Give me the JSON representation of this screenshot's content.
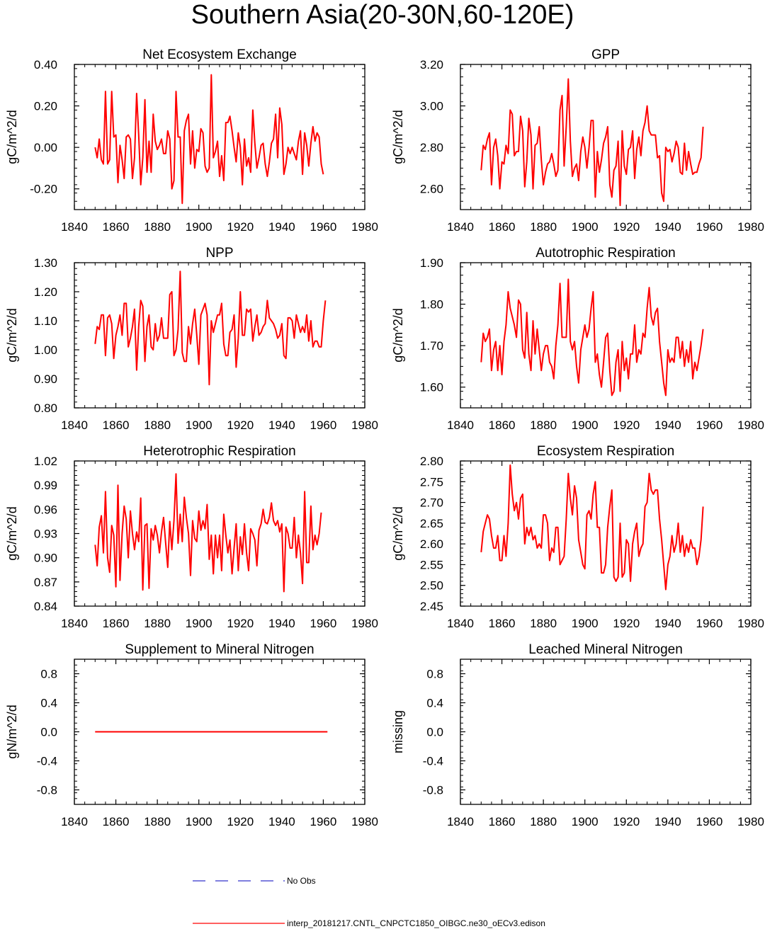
{
  "figure": {
    "title": "Southern Asia(20-30N,60-120E)"
  },
  "colors": {
    "series": "#ff0000",
    "obs": "#3333cc",
    "axis": "#000000"
  },
  "legend": {
    "obs_label": "No Obs",
    "model_label": "interp_20181217.CNTL_CNPCTC1850_OIBGC.ne30_oECv3.edison"
  },
  "chart_data": [
    {
      "type": "line",
      "title": "Net Ecosystem Exchange",
      "ylabel": "gC/m^2/d",
      "xlim": [
        1840,
        1980
      ],
      "x_ticks": [
        "1840",
        "1860",
        "1880",
        "1900",
        "1920",
        "1940",
        "1960",
        "1980"
      ],
      "ylim": [
        -0.3,
        0.4
      ],
      "y_ticks": [
        {
          "v": 0.4,
          "l": "0.40"
        },
        {
          "v": 0.2,
          "l": "0.20"
        },
        {
          "v": 0.0,
          "l": "0.00"
        },
        {
          "v": -0.2,
          "l": "-0.20"
        }
      ],
      "x_start": 1850,
      "series": [
        {
          "name": "interp_20181217.CNTL_CNPCTC1850_OIBGC.ne30_oECv3.edison",
          "values": [
            0.0,
            -0.05,
            0.04,
            -0.06,
            -0.08,
            0.27,
            -0.08,
            -0.06,
            0.27,
            0.05,
            0.06,
            -0.17,
            0.01,
            -0.06,
            -0.15,
            0.05,
            0.06,
            0.04,
            -0.15,
            -0.05,
            0.26,
            0.06,
            -0.18,
            -0.05,
            0.23,
            -0.12,
            0.03,
            -0.12,
            0.16,
            0.03,
            -0.01,
            0.01,
            0.04,
            -0.03,
            -0.03,
            0.08,
            0.04,
            -0.2,
            -0.16,
            0.27,
            0.05,
            0.05,
            -0.27,
            0.08,
            0.13,
            0.16,
            -0.08,
            0.08,
            -0.1,
            -0.01,
            -0.02,
            0.09,
            0.07,
            -0.09,
            -0.12,
            -0.1,
            0.35,
            -0.05,
            -0.02,
            0.03,
            -0.14,
            -0.04,
            -0.16,
            0.12,
            0.12,
            0.15,
            0.08,
            0.0,
            -0.07,
            0.07,
            0.0,
            -0.18,
            0.04,
            -0.09,
            -0.05,
            -0.12,
            0.18,
            0.02,
            -0.1,
            -0.05,
            0.01,
            0.02,
            -0.08,
            -0.14,
            -0.07,
            0.02,
            0.04,
            0.16,
            -0.05,
            0.19,
            0.11,
            -0.13,
            -0.08,
            0.0,
            -0.03,
            0.0,
            -0.03,
            -0.06,
            0.03,
            0.08,
            -0.13,
            0.07,
            0.01,
            -0.09,
            0.02,
            0.1,
            0.03,
            0.07,
            0.05,
            -0.08,
            -0.13
          ]
        }
      ]
    },
    {
      "type": "line",
      "title": "GPP",
      "ylabel": "gC/m^2/d",
      "xlim": [
        1840,
        1980
      ],
      "x_ticks": [
        "1840",
        "1860",
        "1880",
        "1900",
        "1920",
        "1940",
        "1960",
        "1980"
      ],
      "ylim": [
        2.5,
        3.2
      ],
      "y_ticks": [
        {
          "v": 3.2,
          "l": "3.20"
        },
        {
          "v": 3.0,
          "l": "3.00"
        },
        {
          "v": 2.8,
          "l": "2.80"
        },
        {
          "v": 2.6,
          "l": "2.60"
        }
      ],
      "x_start": 1850,
      "series": [
        {
          "name": "interp_20181217.CNTL_CNPCTC1850_OIBGC.ne30_oECv3.edison",
          "values": [
            2.69,
            2.81,
            2.79,
            2.84,
            2.87,
            2.62,
            2.8,
            2.84,
            2.76,
            2.6,
            2.73,
            2.72,
            2.81,
            2.77,
            2.98,
            2.96,
            2.76,
            2.78,
            2.78,
            2.95,
            2.88,
            2.61,
            2.73,
            2.94,
            2.86,
            2.6,
            2.81,
            2.82,
            2.9,
            2.74,
            2.62,
            2.68,
            2.72,
            2.73,
            2.77,
            2.72,
            2.66,
            2.69,
            2.98,
            3.05,
            2.71,
            2.9,
            3.13,
            2.83,
            2.66,
            2.7,
            2.72,
            2.64,
            2.78,
            2.85,
            2.8,
            2.7,
            2.8,
            2.93,
            2.93,
            2.56,
            2.78,
            2.68,
            2.74,
            2.82,
            2.85,
            2.9,
            2.62,
            2.56,
            2.69,
            2.71,
            2.83,
            2.52,
            2.88,
            2.71,
            2.67,
            2.79,
            2.8,
            2.88,
            2.65,
            2.79,
            2.85,
            2.76,
            2.88,
            2.92,
            3.0,
            2.88,
            2.86,
            2.86,
            2.86,
            2.75,
            2.76,
            2.58,
            2.54,
            2.8,
            2.78,
            2.79,
            2.73,
            2.77,
            2.83,
            2.8,
            2.68,
            2.67,
            2.82,
            2.69,
            2.78,
            2.72,
            2.67,
            2.68,
            2.68,
            2.72,
            2.75,
            2.9
          ]
        }
      ]
    },
    {
      "type": "line",
      "title": "NPP",
      "ylabel": "gC/m^2/d",
      "xlim": [
        1840,
        1980
      ],
      "x_ticks": [
        "1840",
        "1860",
        "1880",
        "1900",
        "1920",
        "1940",
        "1960",
        "1980"
      ],
      "ylim": [
        0.8,
        1.3
      ],
      "y_ticks": [
        {
          "v": 1.3,
          "l": "1.30"
        },
        {
          "v": 1.2,
          "l": "1.20"
        },
        {
          "v": 1.1,
          "l": "1.10"
        },
        {
          "v": 1.0,
          "l": "1.00"
        },
        {
          "v": 0.9,
          "l": "0.90"
        },
        {
          "v": 0.8,
          "l": "0.80"
        }
      ],
      "x_start": 1850,
      "series": [
        {
          "name": "interp_20181217.CNTL_CNPCTC1850_OIBGC.ne30_oECv3.edison",
          "values": [
            1.02,
            1.08,
            1.07,
            1.12,
            1.12,
            0.98,
            1.11,
            1.12,
            1.09,
            0.97,
            1.05,
            1.08,
            1.12,
            1.05,
            1.16,
            1.16,
            1.01,
            1.04,
            1.08,
            1.14,
            0.93,
            1.08,
            1.17,
            1.15,
            0.96,
            1.08,
            1.12,
            1.01,
            1.0,
            1.09,
            1.03,
            1.05,
            1.11,
            1.04,
            1.04,
            1.04,
            1.19,
            1.2,
            0.98,
            1.0,
            1.07,
            1.27,
            0.99,
            0.96,
            0.96,
            1.08,
            1.02,
            1.09,
            1.14,
            1.05,
            0.95,
            1.12,
            1.14,
            1.16,
            1.12,
            0.88,
            1.1,
            1.06,
            1.09,
            1.12,
            1.12,
            1.16,
            1.02,
            0.98,
            0.98,
            1.06,
            1.07,
            1.12,
            0.94,
            1.04,
            1.2,
            1.05,
            1.05,
            1.14,
            1.13,
            1.14,
            1.03,
            1.08,
            1.12,
            1.05,
            1.06,
            1.08,
            1.09,
            1.17,
            1.11,
            1.1,
            1.09,
            1.07,
            1.04,
            1.05,
            1.09,
            0.98,
            0.97,
            1.11,
            1.11,
            1.1,
            1.04,
            1.12,
            1.09,
            1.06,
            1.08,
            1.06,
            1.12,
            1.03,
            1.1,
            1.01,
            1.03,
            1.03,
            1.01,
            1.01,
            1.1,
            1.17
          ]
        }
      ]
    },
    {
      "type": "line",
      "title": "Autotrophic Respiration",
      "ylabel": "gC/m^2/d",
      "xlim": [
        1840,
        1980
      ],
      "x_ticks": [
        "1840",
        "1860",
        "1880",
        "1900",
        "1920",
        "1940",
        "1960",
        "1980"
      ],
      "ylim": [
        1.55,
        1.9
      ],
      "y_ticks": [
        {
          "v": 1.9,
          "l": "1.90"
        },
        {
          "v": 1.8,
          "l": "1.80"
        },
        {
          "v": 1.7,
          "l": "1.70"
        },
        {
          "v": 1.6,
          "l": "1.60"
        }
      ],
      "x_start": 1850,
      "series": [
        {
          "name": "interp_20181217.CNTL_CNPCTC1850_OIBGC.ne30_oECv3.edison",
          "values": [
            1.66,
            1.73,
            1.71,
            1.72,
            1.74,
            1.64,
            1.69,
            1.71,
            1.64,
            1.7,
            1.63,
            1.71,
            1.75,
            1.83,
            1.79,
            1.77,
            1.75,
            1.72,
            1.81,
            1.8,
            1.69,
            1.67,
            1.78,
            1.68,
            1.64,
            1.76,
            1.68,
            1.74,
            1.69,
            1.64,
            1.68,
            1.7,
            1.7,
            1.66,
            1.65,
            1.62,
            1.7,
            1.75,
            1.85,
            1.72,
            1.72,
            1.72,
            1.86,
            1.71,
            1.69,
            1.71,
            1.65,
            1.61,
            1.69,
            1.72,
            1.75,
            1.72,
            1.74,
            1.79,
            1.83,
            1.66,
            1.68,
            1.63,
            1.6,
            1.66,
            1.72,
            1.73,
            1.64,
            1.58,
            1.59,
            1.66,
            1.69,
            1.59,
            1.71,
            1.64,
            1.67,
            1.62,
            1.68,
            1.68,
            1.75,
            1.66,
            1.69,
            1.68,
            1.73,
            1.72,
            1.79,
            1.84,
            1.77,
            1.75,
            1.78,
            1.79,
            1.71,
            1.66,
            1.61,
            1.58,
            1.69,
            1.66,
            1.67,
            1.66,
            1.72,
            1.72,
            1.67,
            1.71,
            1.65,
            1.69,
            1.66,
            1.71,
            1.62,
            1.66,
            1.64,
            1.67,
            1.7,
            1.74
          ]
        }
      ]
    },
    {
      "type": "line",
      "title": "Heterotrophic Respiration",
      "ylabel": "gC/m^2/d",
      "xlim": [
        1840,
        1980
      ],
      "x_ticks": [
        "1840",
        "1860",
        "1880",
        "1900",
        "1920",
        "1940",
        "1960",
        "1980"
      ],
      "ylim": [
        0.84,
        1.02
      ],
      "y_ticks": [
        {
          "v": 1.02,
          "l": "1.02"
        },
        {
          "v": 0.99,
          "l": "0.99"
        },
        {
          "v": 0.96,
          "l": "0.96"
        },
        {
          "v": 0.93,
          "l": "0.93"
        },
        {
          "v": 0.9,
          "l": "0.90"
        },
        {
          "v": 0.87,
          "l": "0.87"
        },
        {
          "v": 0.84,
          "l": "0.84"
        }
      ],
      "x_start": 1850,
      "series": [
        {
          "name": "interp_20181217.CNTL_CNPCTC1850_OIBGC.ne30_oECv3.edison",
          "values": [
            0.916,
            0.89,
            0.938,
            0.952,
            0.906,
            0.982,
            0.9,
            0.882,
            0.94,
            0.928,
            0.864,
            0.99,
            0.872,
            0.93,
            0.964,
            0.948,
            0.9,
            0.958,
            0.93,
            0.91,
            0.932,
            0.92,
            0.974,
            0.86,
            0.94,
            0.942,
            0.862,
            0.936,
            0.922,
            0.94,
            0.928,
            0.906,
            0.932,
            0.95,
            0.918,
            0.888,
            0.945,
            0.91,
            0.946,
            1.004,
            0.918,
            0.954,
            0.92,
            0.975,
            0.95,
            0.93,
            0.878,
            0.946,
            0.924,
            0.92,
            0.958,
            0.934,
            0.946,
            0.936,
            0.966,
            0.898,
            0.928,
            0.88,
            0.928,
            0.9,
            0.928,
            0.884,
            0.954,
            0.928,
            0.906,
            0.922,
            0.88,
            0.912,
            0.942,
            0.884,
            0.926,
            0.904,
            0.942,
            0.906,
            0.884,
            0.936,
            0.93,
            0.922,
            0.89,
            0.934,
            0.942,
            0.96,
            0.944,
            0.942,
            0.95,
            0.968,
            0.946,
            0.94,
            0.946,
            0.932,
            0.942,
            0.858,
            0.938,
            0.93,
            0.912,
            0.912,
            0.95,
            0.9,
            0.928,
            0.906,
            0.868,
            0.982,
            0.894,
            0.894,
            0.964,
            0.91,
            0.928,
            0.916,
            0.93,
            0.956
          ]
        }
      ]
    },
    {
      "type": "line",
      "title": "Ecosystem Respiration",
      "ylabel": "gC/m^2/d",
      "xlim": [
        1840,
        1980
      ],
      "x_ticks": [
        "1840",
        "1860",
        "1880",
        "1900",
        "1920",
        "1940",
        "1960",
        "1980"
      ],
      "ylim": [
        2.45,
        2.8
      ],
      "y_ticks": [
        {
          "v": 2.8,
          "l": "2.80"
        },
        {
          "v": 2.75,
          "l": "2.75"
        },
        {
          "v": 2.7,
          "l": "2.70"
        },
        {
          "v": 2.65,
          "l": "2.65"
        },
        {
          "v": 2.6,
          "l": "2.60"
        },
        {
          "v": 2.55,
          "l": "2.55"
        },
        {
          "v": 2.5,
          "l": "2.50"
        },
        {
          "v": 2.45,
          "l": "2.45"
        }
      ],
      "x_start": 1850,
      "series": [
        {
          "name": "interp_20181217.CNTL_CNPCTC1850_OIBGC.ne30_oECv3.edison",
          "values": [
            2.58,
            2.63,
            2.65,
            2.67,
            2.66,
            2.62,
            2.59,
            2.59,
            2.62,
            2.56,
            2.56,
            2.62,
            2.57,
            2.65,
            2.79,
            2.72,
            2.68,
            2.7,
            2.66,
            2.71,
            2.72,
            2.6,
            2.64,
            2.62,
            2.64,
            2.61,
            2.62,
            2.59,
            2.6,
            2.59,
            2.67,
            2.67,
            2.65,
            2.56,
            2.59,
            2.58,
            2.64,
            2.64,
            2.55,
            2.56,
            2.57,
            2.66,
            2.77,
            2.71,
            2.67,
            2.74,
            2.71,
            2.61,
            2.58,
            2.55,
            2.54,
            2.67,
            2.68,
            2.66,
            2.72,
            2.75,
            2.64,
            2.64,
            2.53,
            2.53,
            2.55,
            2.64,
            2.69,
            2.73,
            2.52,
            2.51,
            2.52,
            2.65,
            2.52,
            2.53,
            2.61,
            2.6,
            2.51,
            2.6,
            2.63,
            2.65,
            2.57,
            2.59,
            2.6,
            2.69,
            2.7,
            2.77,
            2.73,
            2.72,
            2.73,
            2.73,
            2.66,
            2.61,
            2.55,
            2.49,
            2.55,
            2.57,
            2.62,
            2.58,
            2.6,
            2.65,
            2.58,
            2.62,
            2.57,
            2.6,
            2.58,
            2.61,
            2.59,
            2.59,
            2.55,
            2.57,
            2.61,
            2.69
          ]
        }
      ]
    },
    {
      "type": "line",
      "title": "Supplement to Mineral Nitrogen",
      "ylabel": "gN/m^2/d",
      "xlim": [
        1840,
        1980
      ],
      "x_ticks": [
        "1840",
        "1860",
        "1880",
        "1900",
        "1920",
        "1940",
        "1960",
        "1980"
      ],
      "ylim": [
        -1.0,
        1.0
      ],
      "y_ticks": [
        {
          "v": 0.8,
          "l": "0.8"
        },
        {
          "v": 0.4,
          "l": "0.4"
        },
        {
          "v": 0.0,
          "l": "0.0"
        },
        {
          "v": -0.4,
          "l": "-0.4"
        },
        {
          "v": -0.8,
          "l": "-0.8"
        }
      ],
      "x_start": 1850,
      "series": [
        {
          "name": "interp_20181217.CNTL_CNPCTC1850_OIBGC.ne30_oECv3.edison",
          "x_range": [
            1850,
            1962
          ],
          "constant": 0.0
        }
      ]
    },
    {
      "type": "line",
      "title": "Leached Mineral Nitrogen",
      "ylabel": "missing",
      "xlim": [
        1840,
        1980
      ],
      "x_ticks": [
        "1840",
        "1860",
        "1880",
        "1900",
        "1920",
        "1940",
        "1960",
        "1980"
      ],
      "ylim": [
        -1.0,
        1.0
      ],
      "y_ticks": [
        {
          "v": 0.8,
          "l": "0.8"
        },
        {
          "v": 0.4,
          "l": "0.4"
        },
        {
          "v": 0.0,
          "l": "0.0"
        },
        {
          "v": -0.4,
          "l": "-0.4"
        },
        {
          "v": -0.8,
          "l": "-0.8"
        }
      ],
      "series": []
    }
  ]
}
